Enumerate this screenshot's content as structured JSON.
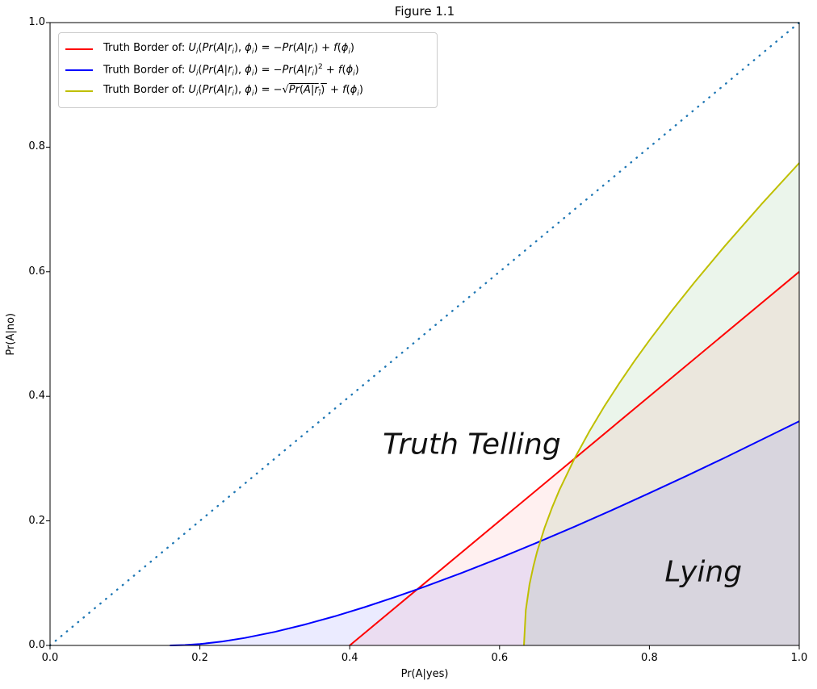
{
  "chart_data": {
    "type": "line",
    "title": "Figure 1.1",
    "xlabel": "Pr(A|yes)",
    "ylabel": "Pr(A|no)",
    "xlim": [
      0.0,
      1.0
    ],
    "ylim": [
      0.0,
      1.0
    ],
    "x_ticks": [
      "0.0",
      "0.2",
      "0.4",
      "0.6",
      "0.8",
      "1.0"
    ],
    "y_ticks": [
      "0.0",
      "0.2",
      "0.4",
      "0.6",
      "0.8",
      "1.0"
    ],
    "grid": false,
    "legend_position": "upper left",
    "series": [
      {
        "name": "truth-border-linear",
        "label": "Truth Border of: Uᵢ(Pr(A|rᵢ), ϕᵢ) = −Pr(A|rᵢ) + f(ϕᵢ)",
        "label_html": "Truth Border of: <i>U<sub>i</sub></i>(<i>Pr</i>(<i>A</i>|<i>r<sub>i</sub></i>), <i>ϕ<sub>i</sub></i>) = −<i>Pr</i>(<i>A</i>|<i>r<sub>i</sub></i>) + <i>f</i>(<i>ϕ<sub>i</sub></i>)",
        "color": "#ff0000",
        "style": "solid",
        "in_legend": true,
        "fill_under": "rgba(255,0,0,0.06)",
        "x": [
          0.4,
          1.0
        ],
        "y": [
          0.0,
          0.6
        ]
      },
      {
        "name": "truth-border-quadratic",
        "label": "Truth Border of: Uᵢ(Pr(A|rᵢ), ϕᵢ) = −Pr(A|rᵢ)² + f(ϕᵢ)",
        "label_html": "Truth Border of: <i>U<sub>i</sub></i>(<i>Pr</i>(<i>A</i>|<i>r<sub>i</sub></i>), <i>ϕ<sub>i</sub></i>) = −<i>Pr</i>(<i>A</i>|<i>r<sub>i</sub></i>)<sup>2</sup> + <i>f</i>(<i>ϕ<sub>i</sub></i>)",
        "color": "#0000ff",
        "style": "solid",
        "in_legend": true,
        "fill_under": "rgba(0,0,255,0.08)",
        "x": [
          0.16,
          0.18,
          0.2,
          0.23,
          0.26,
          0.3,
          0.34,
          0.38,
          0.42,
          0.46,
          0.5,
          0.55,
          0.6,
          0.65,
          0.7,
          0.75,
          0.8,
          0.85,
          0.9,
          0.95,
          1.0
        ],
        "y": [
          0.0,
          0.0006,
          0.0022,
          0.0063,
          0.0121,
          0.0218,
          0.0335,
          0.0468,
          0.0615,
          0.0774,
          0.0943,
          0.1167,
          0.1403,
          0.165,
          0.1907,
          0.2172,
          0.2445,
          0.2724,
          0.3011,
          0.3304,
          0.36
        ]
      },
      {
        "name": "truth-border-sqrt",
        "label": "Truth Border of: Uᵢ(Pr(A|rᵢ), ϕᵢ) = −√(Pr(A|rᵢ)) + f(ϕᵢ)",
        "label_html": "Truth Border of: <i>U<sub>i</sub></i>(<i>Pr</i>(<i>A</i>|<i>r<sub>i</sub></i>), <i>ϕ<sub>i</sub></i>) = −√<span class=\"sqrt-bar\"><i>Pr</i>(<i>A</i>|<i>r<sub>i</sub></i>)&thinsp;</span> + <i>f</i>(<i>ϕ<sub>i</sub></i>)",
        "color": "#bfbf00",
        "style": "solid",
        "in_legend": true,
        "fill_under": "rgba(0,128,0,0.08)",
        "x": [
          0.6325,
          0.635,
          0.64,
          0.645,
          0.65,
          0.66,
          0.67,
          0.68,
          0.7,
          0.72,
          0.74,
          0.76,
          0.78,
          0.8,
          0.83,
          0.86,
          0.9,
          0.95,
          1.0
        ],
        "y": [
          0.0,
          0.0568,
          0.098,
          0.1266,
          0.15,
          0.1887,
          0.2211,
          0.2498,
          0.3,
          0.3441,
          0.3842,
          0.4214,
          0.4565,
          0.4899,
          0.5375,
          0.5828,
          0.6403,
          0.7089,
          0.7746
        ]
      },
      {
        "name": "diagonal-reference",
        "label": "",
        "label_html": "",
        "color": "#1f77b4",
        "style": "dotted",
        "in_legend": false,
        "fill_under": null,
        "x": [
          0.0,
          1.0
        ],
        "y": [
          0.0,
          1.0
        ]
      }
    ],
    "annotations": [
      {
        "text": "Truth Telling",
        "x": 0.563,
        "y": 0.322,
        "fontsize": 36,
        "style": "italic"
      },
      {
        "text": "Lying",
        "x": 0.872,
        "y": 0.118,
        "fontsize": 36,
        "style": "italic"
      }
    ]
  }
}
